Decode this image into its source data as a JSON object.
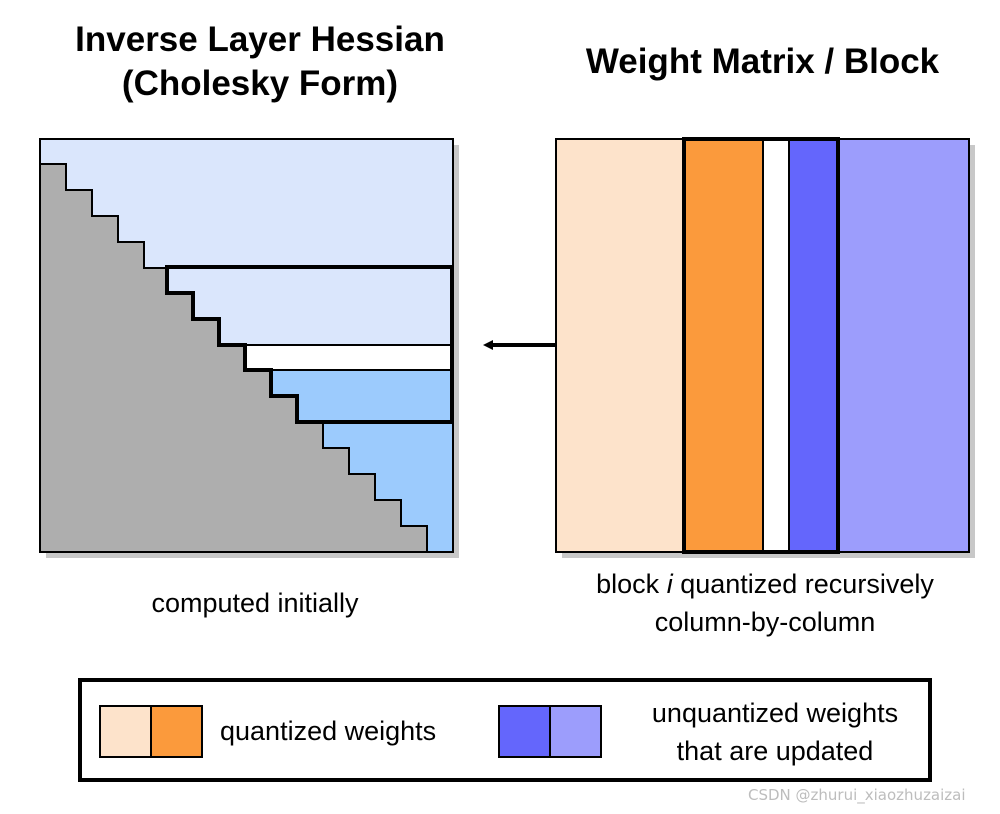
{
  "left_panel": {
    "title_line1": "Inverse Layer Hessian",
    "title_line2": "(Cholesky Form)",
    "caption": "computed initially"
  },
  "right_panel": {
    "title": "Weight Matrix / Block",
    "caption_prefix": "block ",
    "caption_italic": "i",
    "caption_suffix": " quantized recursively",
    "caption_line2": "column-by-column"
  },
  "legend": {
    "quantized_label": "quantized weights",
    "unquantized_line1": "unquantized weights",
    "unquantized_line2": "that are updated"
  },
  "watermark": "CSDN @zhurui_xiaozhuzaizai",
  "colors": {
    "light_blue": "#dae6fc",
    "mid_blue": "#9ccbfd",
    "gray": "#aeaeae",
    "peach": "#fde3cb",
    "orange": "#fb9a3c",
    "dark_purple": "#6466fc",
    "light_purple": "#9c9dfc",
    "shadow": "#c8c8c8"
  }
}
